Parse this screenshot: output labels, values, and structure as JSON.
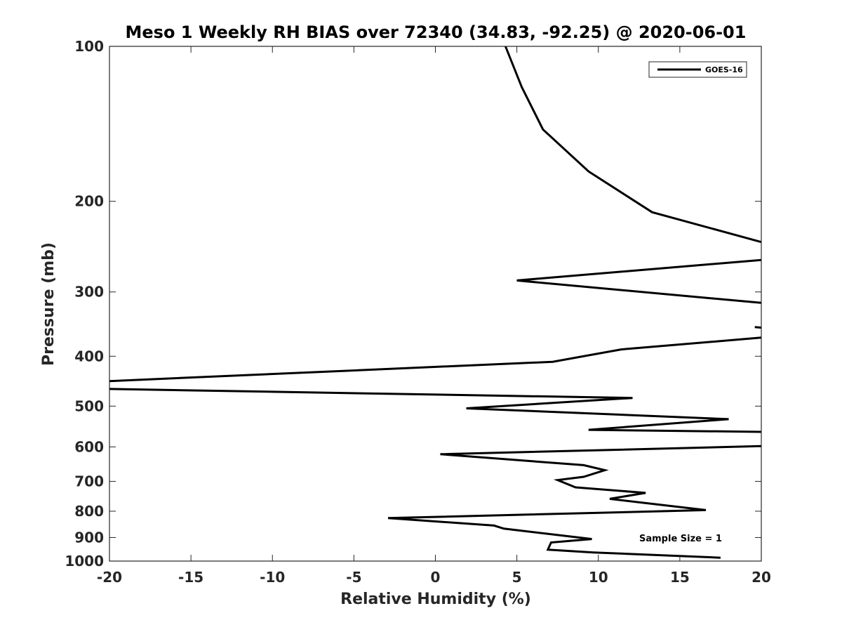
{
  "chart_data": {
    "type": "line",
    "title": "Meso 1 Weekly RH BIAS over 72340 (34.83, -92.25) @ 2020-06-01",
    "xlabel": "Relative Humidity (%)",
    "ylabel": "Pressure (mb)",
    "xlim": [
      -20,
      20
    ],
    "ylim": [
      100,
      1000
    ],
    "y_scale": "log",
    "y_reversed": true,
    "x_ticks": [
      "-20",
      "-15",
      "-10",
      "-5",
      "0",
      "5",
      "10",
      "15",
      "20"
    ],
    "y_ticks": [
      "100",
      "200",
      "300",
      "400",
      "500",
      "600",
      "700",
      "800",
      "900",
      "1000"
    ],
    "grid": false,
    "legend_position": "top-right",
    "annotation": "Sample Size = 1",
    "series": [
      {
        "name": "GOES-16",
        "color": "#000000",
        "segments": [
          [
            [
              4.3,
              100
            ],
            [
              5.3,
              120
            ],
            [
              6.6,
              145
            ],
            [
              9.4,
              175
            ],
            [
              13.3,
              210
            ],
            [
              20,
              240
            ]
          ],
          [
            [
              20,
              260
            ],
            [
              5.0,
              285
            ],
            [
              20,
              315
            ]
          ],
          [
            [
              19.6,
              351
            ],
            [
              20,
              352
            ]
          ],
          [
            [
              20,
              368
            ],
            [
              11.4,
              388
            ],
            [
              7.2,
              410
            ],
            [
              -20,
              447
            ]
          ],
          [
            [
              -20,
              463
            ],
            [
              12.1,
              482
            ],
            [
              1.9,
              505
            ],
            [
              18.0,
              530
            ],
            [
              9.4,
              556
            ],
            [
              20,
              561
            ]
          ],
          [
            [
              20,
              598
            ],
            [
              0.3,
              620
            ],
            [
              9.1,
              651
            ],
            [
              10.4,
              666
            ],
            [
              9.1,
              686
            ],
            [
              7.5,
              696
            ],
            [
              8.6,
              719
            ],
            [
              12.9,
              737
            ],
            [
              10.7,
              757
            ],
            [
              16.6,
              796
            ],
            [
              -2.9,
              825
            ],
            [
              3.6,
              853
            ],
            [
              4.2,
              865
            ],
            [
              9.6,
              906
            ],
            [
              7.1,
              920
            ],
            [
              6.9,
              950
            ],
            [
              9.7,
              962
            ],
            [
              17.5,
              985
            ]
          ]
        ]
      }
    ]
  }
}
